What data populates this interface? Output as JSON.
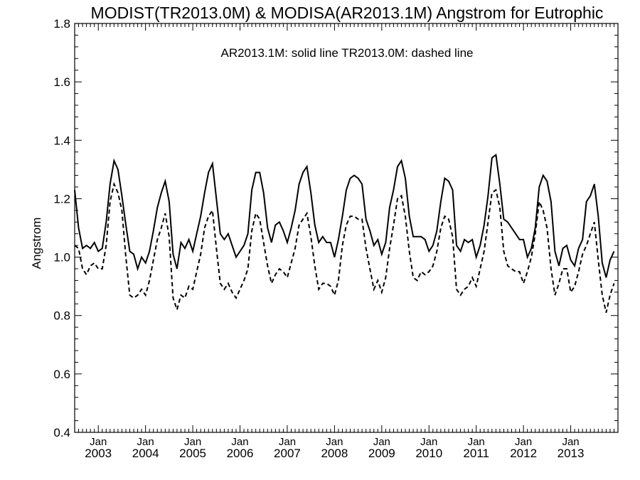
{
  "chart_data": {
    "type": "line",
    "title": "MODIST(TR2013.0M) & MODISA(AR2013.1M)  Angstrom for Eutrophic",
    "annotation": "AR2013.1M: solid line   TR2013.0M: dashed line",
    "xlabel": "",
    "ylabel": "Angstrom",
    "ylim": [
      0.4,
      1.8
    ],
    "yticks": [
      "0.4",
      "0.6",
      "0.8",
      "1.0",
      "1.2",
      "1.4",
      "1.6",
      "1.8"
    ],
    "xlim": [
      "2002-07",
      "2013-12"
    ],
    "x_month_label": "Jan",
    "x_year_labels": [
      "2003",
      "2004",
      "2005",
      "2006",
      "2007",
      "2008",
      "2009",
      "2010",
      "2011",
      "2012",
      "2013"
    ],
    "x_start": "2002-07",
    "series": [
      {
        "name": "AR2013.1M",
        "style": "solid",
        "values": [
          1.23,
          1.1,
          1.03,
          1.04,
          1.03,
          1.05,
          1.02,
          1.03,
          1.12,
          1.25,
          1.33,
          1.3,
          1.21,
          1.11,
          1.02,
          1.01,
          0.96,
          1.0,
          0.98,
          1.02,
          1.09,
          1.17,
          1.22,
          1.26,
          1.19,
          1.01,
          0.96,
          1.05,
          1.03,
          1.06,
          1.02,
          1.08,
          1.14,
          1.22,
          1.29,
          1.32,
          1.2,
          1.08,
          1.06,
          1.08,
          1.04,
          1.0,
          1.02,
          1.04,
          1.08,
          1.23,
          1.29,
          1.29,
          1.22,
          1.1,
          1.05,
          1.11,
          1.12,
          1.09,
          1.05,
          1.1,
          1.16,
          1.25,
          1.29,
          1.31,
          1.22,
          1.11,
          1.05,
          1.07,
          1.05,
          1.05,
          1.0,
          1.06,
          1.14,
          1.23,
          1.27,
          1.28,
          1.27,
          1.25,
          1.13,
          1.09,
          1.04,
          1.06,
          1.01,
          1.05,
          1.17,
          1.23,
          1.31,
          1.33,
          1.27,
          1.14,
          1.07,
          1.07,
          1.07,
          1.06,
          1.02,
          1.04,
          1.09,
          1.19,
          1.27,
          1.26,
          1.23,
          1.04,
          1.02,
          1.06,
          1.05,
          1.06,
          1.0,
          1.04,
          1.11,
          1.21,
          1.34,
          1.35,
          1.25,
          1.13,
          1.12,
          1.1,
          1.08,
          1.06,
          1.06,
          1.0,
          1.03,
          1.1,
          1.24,
          1.28,
          1.26,
          1.19,
          1.02,
          0.97,
          1.03,
          1.04,
          0.99,
          0.97,
          1.03,
          1.06,
          1.19,
          1.21,
          1.25,
          1.14,
          0.98,
          0.93,
          0.99,
          1.02
        ]
      },
      {
        "name": "TR2013.0M",
        "style": "dashed",
        "values": [
          1.04,
          1.03,
          0.96,
          0.94,
          0.97,
          0.98,
          0.96,
          0.96,
          1.04,
          1.19,
          1.25,
          1.22,
          1.16,
          1.0,
          0.87,
          0.86,
          0.87,
          0.89,
          0.87,
          0.92,
          0.99,
          1.06,
          1.1,
          1.15,
          1.07,
          0.86,
          0.82,
          0.87,
          0.86,
          0.9,
          0.89,
          0.95,
          1.01,
          1.1,
          1.14,
          1.16,
          1.03,
          0.91,
          0.89,
          0.91,
          0.88,
          0.86,
          0.89,
          0.92,
          0.96,
          1.09,
          1.15,
          1.13,
          1.05,
          0.97,
          0.91,
          0.94,
          0.96,
          0.95,
          0.93,
          0.98,
          1.03,
          1.11,
          1.13,
          1.15,
          1.07,
          0.97,
          0.89,
          0.91,
          0.91,
          0.9,
          0.87,
          0.92,
          1.04,
          1.11,
          1.14,
          1.14,
          1.13,
          1.13,
          1.03,
          0.96,
          0.89,
          0.92,
          0.88,
          0.93,
          1.03,
          1.11,
          1.2,
          1.21,
          1.14,
          1.02,
          0.93,
          0.92,
          0.95,
          0.94,
          0.95,
          0.97,
          1.02,
          1.1,
          1.14,
          1.13,
          1.07,
          0.89,
          0.87,
          0.89,
          0.9,
          0.93,
          0.9,
          0.96,
          1.02,
          1.12,
          1.22,
          1.23,
          1.17,
          1.02,
          0.97,
          0.96,
          0.95,
          0.95,
          0.91,
          0.95,
          1.0,
          1.08,
          1.19,
          1.16,
          1.1,
          0.96,
          0.87,
          0.91,
          0.96,
          0.96,
          0.88,
          0.9,
          0.95,
          1.01,
          1.04,
          1.08,
          1.12,
          0.99,
          0.87,
          0.81,
          0.87,
          0.91
        ]
      }
    ],
    "grid": false,
    "legend": "none"
  }
}
